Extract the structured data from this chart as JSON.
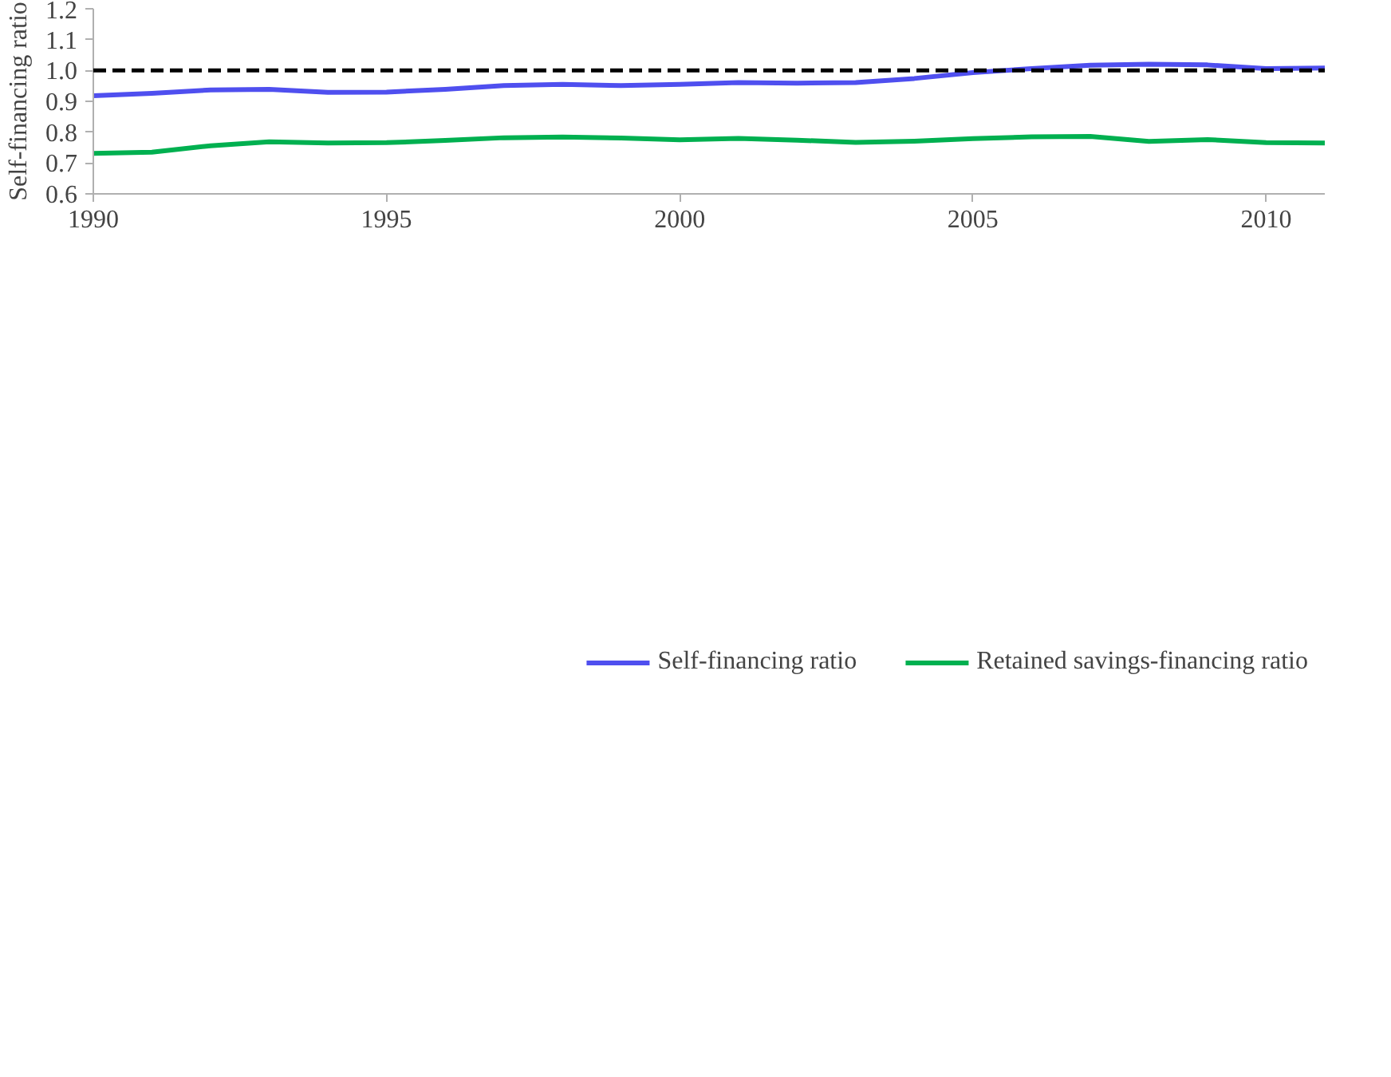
{
  "chart_data": {
    "type": "line",
    "ylabel": "Self-financing ratio",
    "x": [
      1990,
      1991,
      1992,
      1993,
      1994,
      1995,
      1996,
      1997,
      1998,
      1999,
      2000,
      2001,
      2002,
      2003,
      2004,
      2005,
      2006,
      2007,
      2008,
      2009,
      2010,
      2011
    ],
    "series": [
      {
        "name": "Self-financing ratio",
        "color": "#4f4fef",
        "values": [
          0.918,
          0.926,
          0.937,
          0.939,
          0.929,
          0.93,
          0.939,
          0.951,
          0.955,
          0.951,
          0.955,
          0.961,
          0.959,
          0.961,
          0.974,
          0.993,
          1.006,
          1.017,
          1.02,
          1.018,
          1.006,
          1.008
        ]
      },
      {
        "name": "Retained savings-financing ratio",
        "color": "#00b050",
        "values": [
          0.731,
          0.735,
          0.756,
          0.769,
          0.765,
          0.766,
          0.773,
          0.782,
          0.784,
          0.781,
          0.775,
          0.78,
          0.774,
          0.767,
          0.771,
          0.779,
          0.785,
          0.786,
          0.77,
          0.776,
          0.766,
          0.765
        ]
      }
    ],
    "xlim": [
      1990,
      2011
    ],
    "xticks": [
      1990,
      1995,
      2000,
      2005,
      2010
    ],
    "ylim": [
      0.6,
      1.2
    ],
    "yticks": [
      {
        "value": 0.6,
        "label": "0.6"
      },
      {
        "value": 0.7,
        "label": "0.7"
      },
      {
        "value": 0.8,
        "label": "0.8"
      },
      {
        "value": 0.9,
        "label": "0.9"
      },
      {
        "value": 1.0,
        "label": "1.0"
      },
      {
        "value": 1.1,
        "label": "1.1"
      },
      {
        "value": 1.2,
        "label": "1.2"
      }
    ],
    "ref_lines": [
      {
        "axis": "y",
        "value": 1.0,
        "color": "#000000",
        "line_style": "dashed"
      }
    ],
    "grid": false,
    "legend": "bottom",
    "marker": "none",
    "line_style": "solid"
  }
}
